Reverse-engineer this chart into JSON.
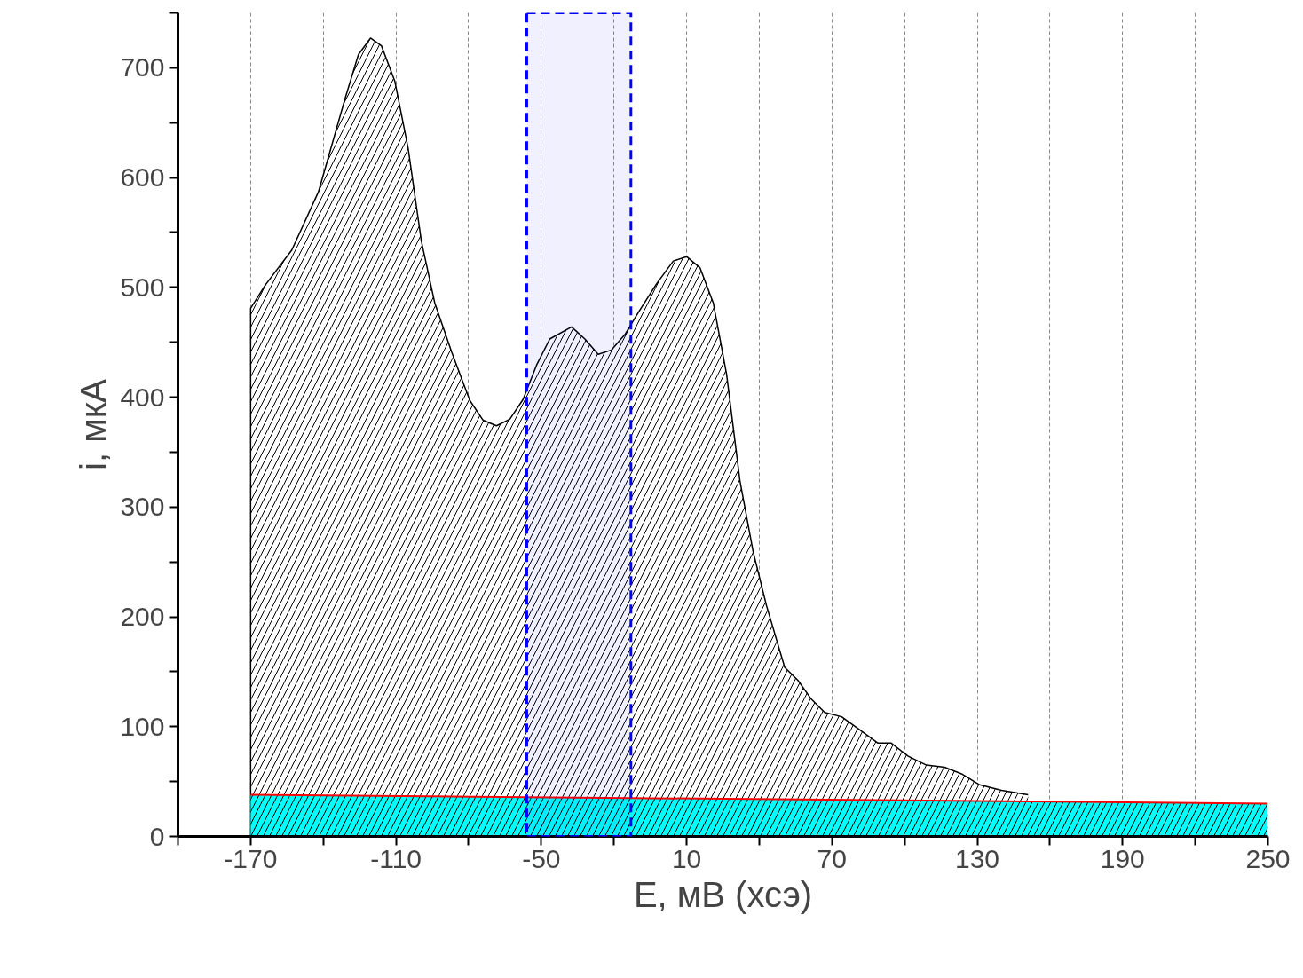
{
  "chart_data": {
    "type": "area",
    "xlabel": "E, мВ (хсэ)",
    "ylabel": "i, мкА",
    "xlim": [
      -200,
      250
    ],
    "ylim": [
      0,
      750
    ],
    "xticks": [
      {
        "value": -200,
        "label": null
      },
      -170,
      {
        "value": -140,
        "label": null
      },
      -110,
      {
        "value": -80,
        "label": null
      },
      -50,
      {
        "value": -20,
        "label": null
      },
      10,
      {
        "value": 40,
        "label": null
      },
      70,
      {
        "value": 100,
        "label": null
      },
      130,
      {
        "value": 160,
        "label": null
      },
      190,
      {
        "value": 220,
        "label": null
      },
      250
    ],
    "yticks": [
      0,
      {
        "value": 50,
        "label": null
      },
      100,
      {
        "value": 150,
        "label": null
      },
      200,
      {
        "value": 250,
        "label": null
      },
      300,
      {
        "value": 350,
        "label": null
      },
      400,
      {
        "value": 450,
        "label": null
      },
      500,
      {
        "value": 550,
        "label": null
      },
      600,
      {
        "value": 650,
        "label": null
      },
      700,
      {
        "value": 750,
        "label": null
      }
    ],
    "grid": "x",
    "bands": [
      {
        "axis": "x",
        "from": -56,
        "to": -13,
        "color": "#0000ff"
      }
    ],
    "series": [
      {
        "color": "#000000",
        "x": [
          -170,
          -170,
          -164,
          -153,
          -142,
          -131,
          -125.5,
          -120.5,
          -116,
          -110.5,
          -105,
          -99.5,
          -94,
          -87,
          -79.5,
          -74,
          -68.5,
          -63,
          -57.5,
          -52,
          -46.5,
          -37.5,
          -32,
          -26.5,
          -21,
          -15.5,
          -10,
          -2.5,
          4.5,
          10,
          15.5,
          21,
          26.5,
          32,
          37.5,
          43,
          50.5,
          56,
          61.5,
          67,
          74,
          81.5,
          89,
          94.5,
          101.5,
          109,
          116.5,
          123.5,
          131,
          140,
          151
        ],
        "values": [
          0,
          481,
          502,
          534,
          587,
          672,
          712,
          727,
          720,
          688,
          627,
          542,
          486,
          441,
          397,
          379,
          374,
          380,
          398,
          429,
          453,
          464,
          453,
          439,
          443,
          457,
          477,
          503,
          524,
          528,
          518,
          486,
          421,
          324,
          259,
          210,
          154,
          142,
          125,
          113,
          109,
          97,
          85,
          85,
          73,
          65,
          63,
          57,
          47,
          42,
          38
        ]
      },
      {
        "color": "#00ffff",
        "x": [
          -170,
          250
        ],
        "values": [
          38,
          30
        ]
      },
      {
        "type": "line",
        "color": "#ff0000",
        "x": [
          -170,
          250
        ],
        "values": [
          38,
          30
        ]
      }
    ]
  }
}
